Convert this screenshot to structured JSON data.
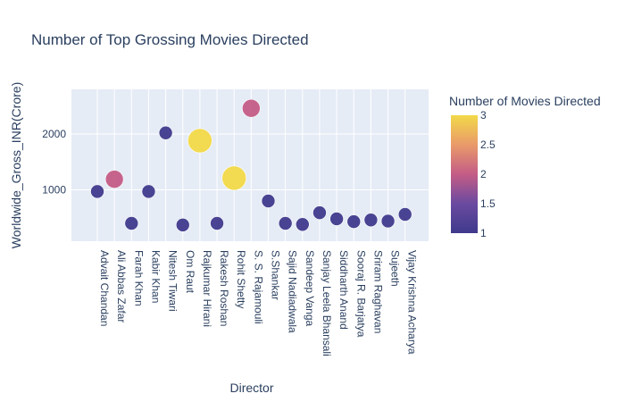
{
  "chart_data": {
    "type": "scatter",
    "title": "Number of Top Grossing Movies Directed",
    "xlabel": "Director",
    "ylabel": "Worldwide_Gross_INR(Crore)",
    "y_ticks": [
      "1000",
      "2000"
    ],
    "ylim": [
      80,
      2800
    ],
    "grid": true,
    "colorbar": {
      "title": "Number of Movies Directed",
      "range": [
        1,
        3
      ],
      "ticks": [
        "1",
        "1.5",
        "2",
        "2.5",
        "3"
      ],
      "colors": [
        "#0d0887",
        "#46039f",
        "#7201a8",
        "#9c179e",
        "#bd3786",
        "#d8576b",
        "#ed7953",
        "#fb9f3a",
        "#fdca26",
        "#f0f921"
      ]
    },
    "points": [
      {
        "director": "Advait Chandan",
        "gross": 970,
        "movies": 1
      },
      {
        "director": "Ali Abbas Zafar",
        "gross": 1190,
        "movies": 2
      },
      {
        "director": "Farah Khan",
        "gross": 400,
        "movies": 1
      },
      {
        "director": "Kabir Khan",
        "gross": 970,
        "movies": 1
      },
      {
        "director": "Nitesh Tiwari",
        "gross": 2020,
        "movies": 1
      },
      {
        "director": "Om Raut",
        "gross": 370,
        "movies": 1
      },
      {
        "director": "Rajkumar Hirani",
        "gross": 1880,
        "movies": 3
      },
      {
        "director": "Rakesh Roshan",
        "gross": 400,
        "movies": 1
      },
      {
        "director": "Rohit Shetty",
        "gross": 1210,
        "movies": 3
      },
      {
        "director": "S. S. Rajamouli",
        "gross": 2460,
        "movies": 2
      },
      {
        "director": "S.Shankar",
        "gross": 800,
        "movies": 1
      },
      {
        "director": "Sajid Nadiadwala",
        "gross": 400,
        "movies": 1
      },
      {
        "director": "Sandeep Vanga",
        "gross": 380,
        "movies": 1
      },
      {
        "director": "Sanjay Leela Bhansali",
        "gross": 590,
        "movies": 1
      },
      {
        "director": "Siddharth Anand",
        "gross": 480,
        "movies": 1
      },
      {
        "director": "Sooraj R. Barjatya",
        "gross": 430,
        "movies": 1
      },
      {
        "director": "Sriram Raghavan",
        "gross": 460,
        "movies": 1
      },
      {
        "director": "Sujeeth",
        "gross": 440,
        "movies": 1
      },
      {
        "director": "Vijay Krishna Acharya",
        "gross": 560,
        "movies": 1
      }
    ]
  }
}
